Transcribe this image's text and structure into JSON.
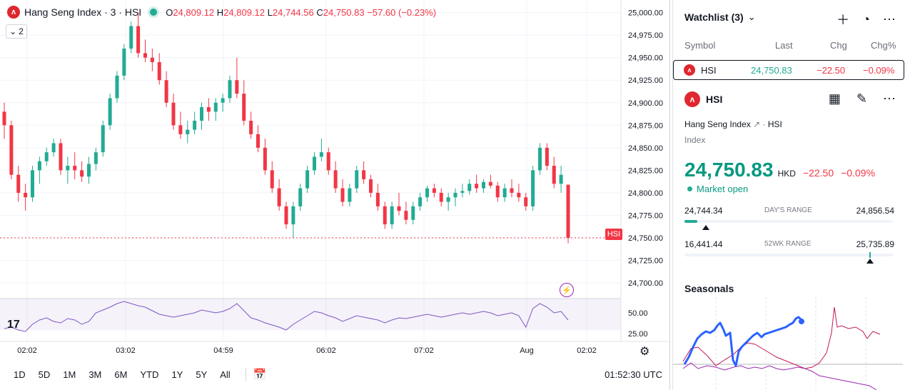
{
  "legend": {
    "title": "Hang Seng Index · 3 · HSI",
    "logo_text": "ᴧ",
    "o_label": "O",
    "o_value": "24,809.12",
    "h_label": "H",
    "h_value": "24,809.12",
    "l_label": "L",
    "l_value": "24,744.56",
    "c_label": "C",
    "c_value": "24,750.83",
    "change": "−57.60 (−0.23%)",
    "collapse_count": "2"
  },
  "price_axis": {
    "ticks": [
      "25,000.00",
      "24,975.00",
      "24,950.00",
      "24,925.00",
      "24,900.00",
      "24,875.00",
      "24,850.00",
      "24,825.00",
      "24,800.00",
      "24,775.00",
      "24,750.00",
      "24,725.00",
      "24,700.00"
    ],
    "symbol_badge": "HSI",
    "rsi_ticks": [
      "50.00",
      "25.00"
    ]
  },
  "time_axis": {
    "labels": [
      "02:02",
      "03:02",
      "04:59",
      "06:02",
      "07:02",
      "Aug",
      "02:02"
    ]
  },
  "bottom_bar": {
    "ranges": [
      "1D",
      "5D",
      "1M",
      "3M",
      "6M",
      "YTD",
      "1Y",
      "5Y",
      "All"
    ],
    "clock": "01:52:30 UTC"
  },
  "watchlist": {
    "title": "Watchlist (3)",
    "columns": {
      "symbol": "Symbol",
      "last": "Last",
      "chg": "Chg",
      "chgp": "Chg%"
    },
    "rows": [
      {
        "symbol": "HSI",
        "last": "24,750.83",
        "chg": "−22.50",
        "chgp": "−0.09%"
      }
    ]
  },
  "detail": {
    "symbol": "HSI",
    "full_name": "Hang Seng Index",
    "ticker": "HSI",
    "type": "Index",
    "price": "24,750.83",
    "currency": "HKD",
    "change": "−22.50",
    "change_pct": "−0.09%",
    "market_status": "Market open",
    "days_range": {
      "label": "DAY'S RANGE",
      "low": "24,744.34",
      "high": "24,856.54",
      "position": 0.06
    },
    "wk52_range": {
      "label": "52WK RANGE",
      "low": "16,441.44",
      "high": "25,735.89",
      "position": 0.89
    },
    "seasonals_title": "Seasonals"
  },
  "colors": {
    "up": "#22ab94",
    "down": "#f23645",
    "rsi": "#7e57c2",
    "seasonal_current": "#2962ff",
    "seasonal_a": "#c2185b",
    "seasonal_b": "#9c27b0"
  },
  "chart_data": {
    "type": "candlestick",
    "y_range": [
      24685,
      25010
    ],
    "candles": [
      [
        24890,
        24900,
        24860,
        24875
      ],
      [
        24875,
        24880,
        24815,
        24820
      ],
      [
        24820,
        24830,
        24790,
        24800
      ],
      [
        24800,
        24810,
        24780,
        24795
      ],
      [
        24795,
        24830,
        24790,
        24825
      ],
      [
        24825,
        24840,
        24810,
        24835
      ],
      [
        24835,
        24850,
        24830,
        24845
      ],
      [
        24845,
        24860,
        24840,
        24855
      ],
      [
        24855,
        24860,
        24820,
        24825
      ],
      [
        24825,
        24840,
        24810,
        24830
      ],
      [
        24830,
        24845,
        24815,
        24825
      ],
      [
        24825,
        24835,
        24812,
        24818
      ],
      [
        24818,
        24840,
        24810,
        24832
      ],
      [
        24832,
        24850,
        24825,
        24845
      ],
      [
        24845,
        24880,
        24840,
        24875
      ],
      [
        24875,
        24910,
        24870,
        24905
      ],
      [
        24905,
        24935,
        24900,
        24930
      ],
      [
        24930,
        24965,
        24925,
        24960
      ],
      [
        24960,
        24990,
        24955,
        24985
      ],
      [
        24985,
        25000,
        24950,
        24955
      ],
      [
        24955,
        24970,
        24945,
        24950
      ],
      [
        24950,
        24960,
        24935,
        24945
      ],
      [
        24945,
        24955,
        24920,
        24925
      ],
      [
        24925,
        24935,
        24895,
        24900
      ],
      [
        24900,
        24910,
        24870,
        24875
      ],
      [
        24875,
        24890,
        24860,
        24865
      ],
      [
        24865,
        24880,
        24855,
        24870
      ],
      [
        24870,
        24890,
        24865,
        24880
      ],
      [
        24880,
        24900,
        24870,
        24895
      ],
      [
        24895,
        24905,
        24880,
        24890
      ],
      [
        24890,
        24905,
        24880,
        24900
      ],
      [
        24900,
        24910,
        24890,
        24905
      ],
      [
        24905,
        24930,
        24900,
        24925
      ],
      [
        24925,
        24950,
        24905,
        24910
      ],
      [
        24910,
        24925,
        24875,
        24880
      ],
      [
        24880,
        24890,
        24860,
        24865
      ],
      [
        24865,
        24875,
        24845,
        24850
      ],
      [
        24850,
        24860,
        24820,
        24825
      ],
      [
        24825,
        24835,
        24800,
        24805
      ],
      [
        24805,
        24815,
        24780,
        24785
      ],
      [
        24785,
        24790,
        24760,
        24765
      ],
      [
        24765,
        24790,
        24750,
        24785
      ],
      [
        24785,
        24810,
        24780,
        24805
      ],
      [
        24805,
        24830,
        24800,
        24825
      ],
      [
        24825,
        24845,
        24820,
        24840
      ],
      [
        24840,
        24860,
        24835,
        24845
      ],
      [
        24845,
        24850,
        24820,
        24825
      ],
      [
        24825,
        24835,
        24800,
        24805
      ],
      [
        24805,
        24815,
        24785,
        24790
      ],
      [
        24790,
        24810,
        24785,
        24805
      ],
      [
        24805,
        24830,
        24800,
        24825
      ],
      [
        24825,
        24835,
        24810,
        24815
      ],
      [
        24815,
        24820,
        24795,
        24800
      ],
      [
        24800,
        24810,
        24780,
        24785
      ],
      [
        24785,
        24790,
        24760,
        24765
      ],
      [
        24765,
        24790,
        24760,
        24785
      ],
      [
        24785,
        24800,
        24775,
        24780
      ],
      [
        24780,
        24790,
        24765,
        24770
      ],
      [
        24770,
        24790,
        24765,
        24785
      ],
      [
        24785,
        24800,
        24780,
        24795
      ],
      [
        24795,
        24808,
        24790,
        24805
      ],
      [
        24805,
        24810,
        24795,
        24800
      ],
      [
        24800,
        24805,
        24785,
        24790
      ],
      [
        24790,
        24800,
        24780,
        24795
      ],
      [
        24795,
        24805,
        24785,
        24800
      ],
      [
        24800,
        24810,
        24795,
        24802
      ],
      [
        24802,
        24815,
        24798,
        24810
      ],
      [
        24810,
        24820,
        24800,
        24805
      ],
      [
        24805,
        24815,
        24800,
        24812
      ],
      [
        24812,
        24820,
        24805,
        24808
      ],
      [
        24808,
        24812,
        24790,
        24795
      ],
      [
        24795,
        24810,
        24790,
        24805
      ],
      [
        24805,
        24815,
        24795,
        24800
      ],
      [
        24800,
        24810,
        24790,
        24795
      ],
      [
        24795,
        24800,
        24780,
        24785
      ],
      [
        24785,
        24830,
        24780,
        24825
      ],
      [
        24825,
        24855,
        24820,
        24850
      ],
      [
        24850,
        24855,
        24825,
        24830
      ],
      [
        24830,
        24840,
        24805,
        24810
      ],
      [
        24810,
        24830,
        24800,
        24820
      ],
      [
        24809,
        24809,
        24744,
        24750
      ]
    ],
    "rsi": [
      30,
      32,
      28,
      26,
      36,
      42,
      45,
      40,
      38,
      44,
      42,
      36,
      40,
      52,
      56,
      60,
      65,
      68,
      65,
      62,
      60,
      55,
      50,
      48,
      46,
      48,
      50,
      52,
      56,
      54,
      52,
      54,
      58,
      65,
      55,
      45,
      42,
      38,
      35,
      32,
      28,
      36,
      42,
      48,
      54,
      52,
      48,
      45,
      40,
      44,
      48,
      46,
      44,
      42,
      38,
      42,
      45,
      44,
      46,
      48,
      50,
      48,
      46,
      48,
      50,
      52,
      50,
      52,
      54,
      52,
      48,
      50,
      52,
      48,
      32,
      58,
      65,
      60,
      52,
      54,
      42
    ]
  }
}
